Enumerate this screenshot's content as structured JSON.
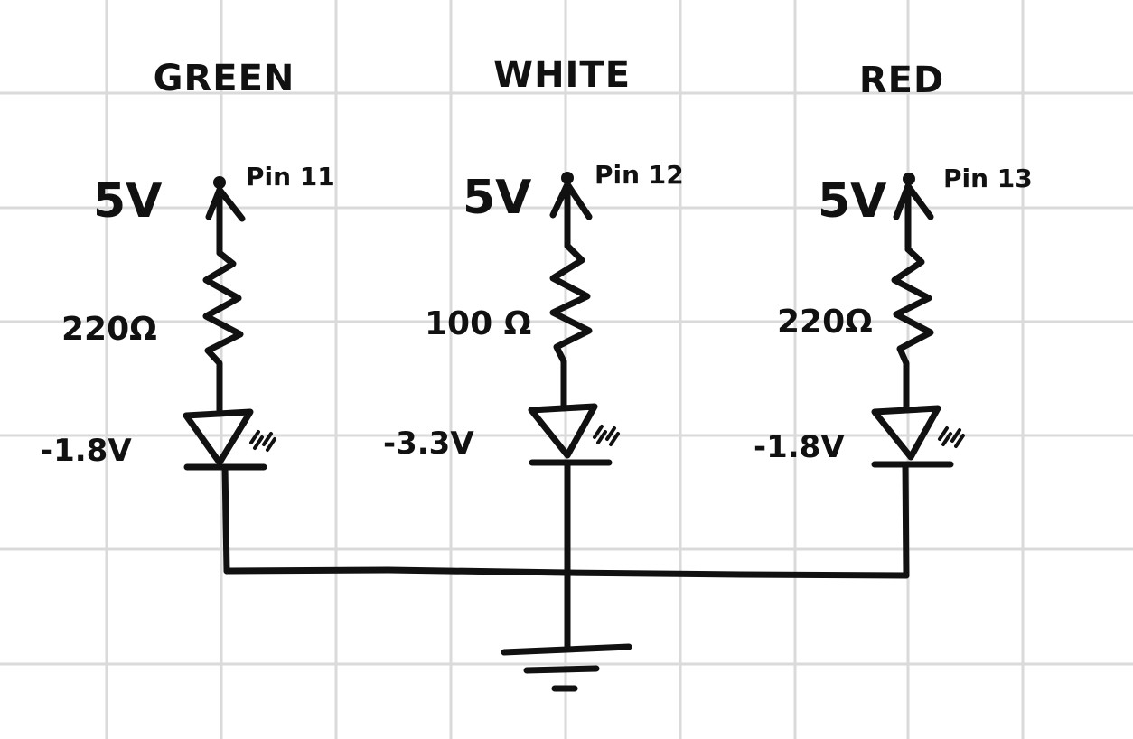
{
  "branches": [
    {
      "title": "GREEN",
      "supply": "5V",
      "pin": "Pin 11",
      "resistor": "220Ω",
      "led_drop": "-1.8V"
    },
    {
      "title": "WHITE",
      "supply": "5V",
      "pin": "Pin 12",
      "resistor": "100 Ω",
      "led_drop": "-3.3V"
    },
    {
      "title": "RED",
      "supply": "5V",
      "pin": "Pin 13",
      "resistor": "220Ω",
      "led_drop": "-1.8V"
    }
  ],
  "colors": {
    "ink": "#111111",
    "grid": "#dadada",
    "paper": "#ffffff"
  }
}
